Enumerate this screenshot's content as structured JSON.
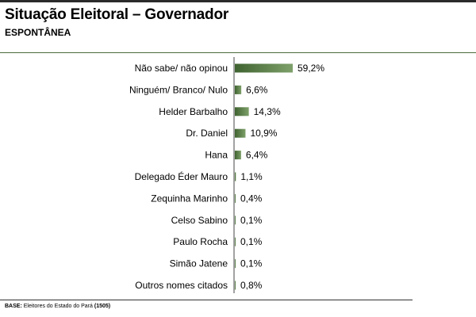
{
  "header": {
    "title": "Situação Eleitoral – Governador",
    "subtitle": "ESPONTÂNEA"
  },
  "footer": {
    "base_label": "BASE:",
    "base_text": "Eleitores do Estado do Pará",
    "base_count": "(1505)"
  },
  "colors": {
    "bar_dark": "#3f6330",
    "bar_light": "#7ea06a",
    "axis": "#444444"
  },
  "chart_data": {
    "type": "bar",
    "orientation": "horizontal",
    "categories": [
      "Não sabe/ não opinou",
      "Ninguém/ Branco/ Nulo",
      "Helder Barbalho",
      "Dr. Daniel",
      "Hana",
      "Delegado Éder Mauro",
      "Zequinha Marinho",
      "Celso Sabino",
      "Paulo Rocha",
      "Simão Jatene",
      "Outros nomes citados"
    ],
    "values": [
      59.2,
      6.6,
      14.3,
      10.9,
      6.4,
      1.1,
      0.4,
      0.1,
      0.1,
      0.1,
      0.8
    ],
    "value_labels": [
      "59,2%",
      "6,6%",
      "14,3%",
      "10,9%",
      "6,4%",
      "1,1%",
      "0,4%",
      "0,1%",
      "0,1%",
      "0,1%",
      "0,8%"
    ],
    "xlim": [
      0,
      100
    ],
    "grid": false,
    "legend": "none"
  }
}
